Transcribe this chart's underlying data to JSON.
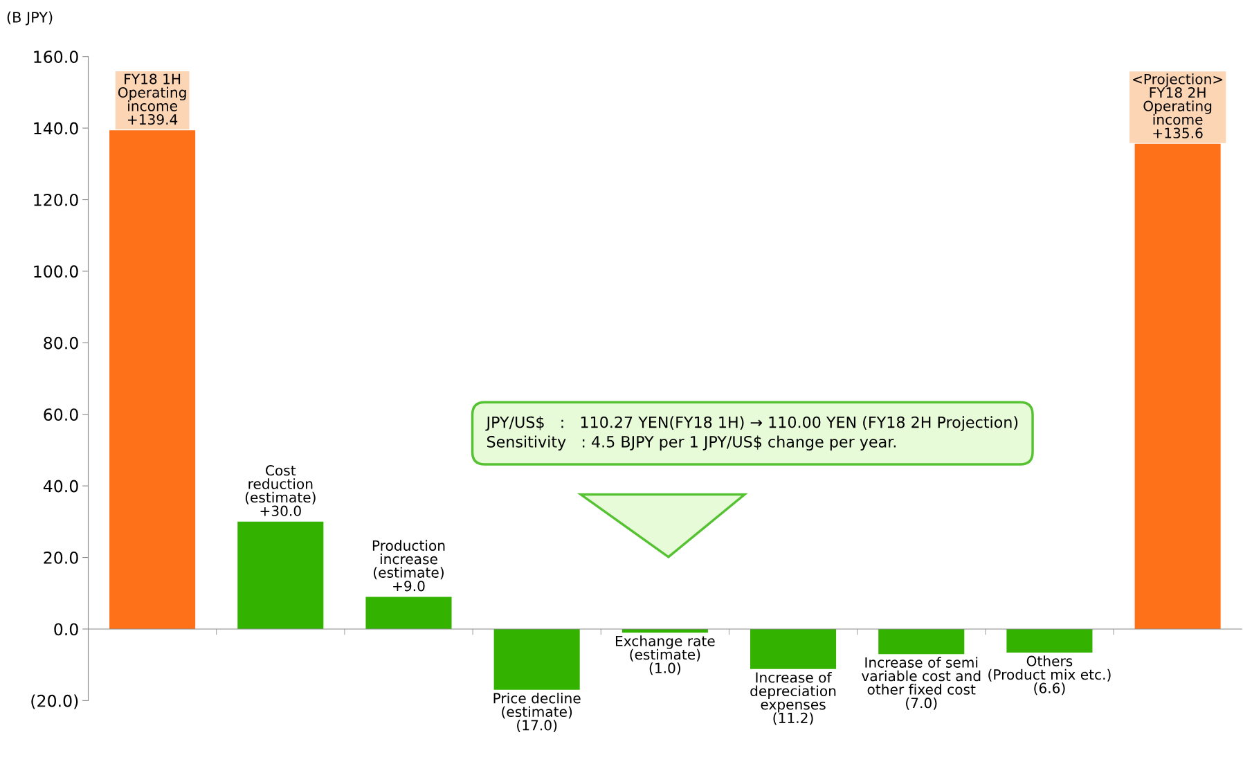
{
  "chart_data": {
    "type": "bar",
    "ylabel": "(B JPY)",
    "categories": [
      "FY18 1H\nOperating\nincome",
      "Cost\nreduction\n(estimate)",
      "Production\nincrease\n(estimate)",
      "Price decline\n(estimate)",
      "Exchange rate\n(estimate)",
      "Increase of\ndepreciation\nexpenses",
      "Increase of semi\nvariable cost and\nother fixed cost",
      "Others\n(Product mix etc.)",
      "<Projection>\nFY18 2H\nOperating\nincome"
    ],
    "values": [
      139.4,
      30.0,
      9.0,
      -17.0,
      -1.0,
      -11.2,
      -7.0,
      -6.6,
      135.6
    ],
    "value_labels": [
      "+139.4",
      "+30.0",
      "+9.0",
      "(17.0)",
      "(1.0)",
      "(11.2)",
      "(7.0)",
      "(6.6)",
      "+135.6"
    ],
    "colors": [
      "#ff7119",
      "#33b300",
      "#33b300",
      "#33b300",
      "#33b300",
      "#33b300",
      "#33b300",
      "#33b300",
      "#ff7119"
    ],
    "ylim": [
      -20,
      160
    ],
    "yticks": [
      {
        "value": -20,
        "label": "(20.0)"
      },
      {
        "value": 0,
        "label": "0.0"
      },
      {
        "value": 20,
        "label": "20.0"
      },
      {
        "value": 40,
        "label": "40.0"
      },
      {
        "value": 60,
        "label": "60.0"
      },
      {
        "value": 80,
        "label": "80.0"
      },
      {
        "value": 100,
        "label": "100.0"
      },
      {
        "value": 120,
        "label": "120.0"
      },
      {
        "value": 140,
        "label": "140.0"
      },
      {
        "value": 160,
        "label": "160.0"
      }
    ],
    "annotations": [
      "JPY/US$   :   110.27 YEN(FY18 1H) → 110.00 YEN (FY18 2H Projection)\nSensitivity   : 4.5 BJPY per 1 JPY/US$ change per year."
    ],
    "grid": false
  }
}
